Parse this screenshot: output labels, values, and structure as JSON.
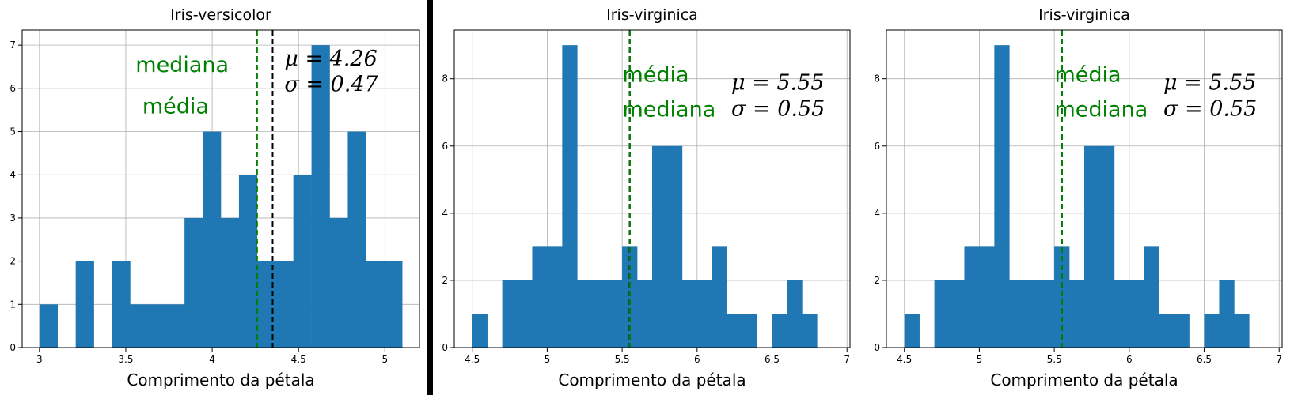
{
  "colors": {
    "bar": "#1f77b4",
    "mean_line": "#008000",
    "median_line": "#000000",
    "annotation": "#008000",
    "grid": "#b0b0b0"
  },
  "chart_data": [
    {
      "type": "bar",
      "title": "Iris-versicolor",
      "xlabel": "Comprimento da pétala",
      "ylabel": "",
      "xlim": [
        2.9,
        5.2
      ],
      "ylim": [
        0,
        7.35
      ],
      "xticks": [
        3.0,
        3.5,
        4.0,
        4.5,
        5.0
      ],
      "yticks": [
        0,
        1,
        2,
        3,
        4,
        5,
        6,
        7
      ],
      "bin_edges": [
        3.0,
        3.105,
        3.21,
        3.315,
        3.42,
        3.525,
        3.63,
        3.735,
        3.84,
        3.945,
        4.05,
        4.155,
        4.26,
        4.365,
        4.47,
        4.575,
        4.68,
        4.785,
        4.89,
        4.995,
        5.1
      ],
      "values": [
        1,
        0,
        2,
        0,
        2,
        1,
        1,
        1,
        3,
        5,
        3,
        4,
        2,
        2,
        4,
        7,
        3,
        5,
        2,
        2
      ],
      "mean": 4.26,
      "median": 4.35,
      "labels": {
        "mean": "média",
        "median": "mediana"
      },
      "stats_text": {
        "mu": "μ = 4.26",
        "sigma": "σ = 0.47"
      },
      "grid": true
    },
    {
      "type": "bar",
      "title": "Iris-virginica",
      "xlabel": "Comprimento da pétala",
      "ylabel": "",
      "xlim": [
        4.38,
        7.02
      ],
      "ylim": [
        0,
        9.45
      ],
      "xticks": [
        4.5,
        5.0,
        5.5,
        6.0,
        6.5,
        7.0
      ],
      "yticks": [
        0,
        2,
        4,
        6,
        8
      ],
      "bin_edges": [
        4.5,
        4.6,
        4.7,
        4.8,
        4.9,
        5.0,
        5.1,
        5.2,
        5.3,
        5.4,
        5.5,
        5.6,
        5.7,
        5.8,
        5.9,
        6.0,
        6.1,
        6.2,
        6.3,
        6.4,
        6.5,
        6.6,
        6.7,
        6.8,
        6.9
      ],
      "values": [
        1,
        0,
        2,
        2,
        3,
        3,
        9,
        2,
        2,
        2,
        3,
        2,
        6,
        6,
        2,
        2,
        3,
        1,
        1,
        0,
        1,
        2,
        1,
        0
      ],
      "mean": 5.552,
      "median": 5.55,
      "labels": {
        "mean": "média",
        "median": "mediana"
      },
      "stats_text": {
        "mu": "μ = 5.55",
        "sigma": "σ = 0.55"
      },
      "grid": true
    },
    {
      "type": "bar",
      "title": "Iris-virginica",
      "xlabel": "Comprimento da pétala",
      "ylabel": "",
      "xlim": [
        4.38,
        7.02
      ],
      "ylim": [
        0,
        9.45
      ],
      "xticks": [
        4.5,
        5.0,
        5.5,
        6.0,
        6.5,
        7.0
      ],
      "yticks": [
        0,
        2,
        4,
        6,
        8
      ],
      "bin_edges": [
        4.5,
        4.6,
        4.7,
        4.8,
        4.9,
        5.0,
        5.1,
        5.2,
        5.3,
        5.4,
        5.5,
        5.6,
        5.7,
        5.8,
        5.9,
        6.0,
        6.1,
        6.2,
        6.3,
        6.4,
        6.5,
        6.6,
        6.7,
        6.8,
        6.9
      ],
      "values": [
        1,
        0,
        2,
        2,
        3,
        3,
        9,
        2,
        2,
        2,
        3,
        2,
        6,
        6,
        2,
        2,
        3,
        1,
        1,
        0,
        1,
        2,
        1,
        0
      ],
      "mean": 5.552,
      "median": 5.55,
      "labels": {
        "mean": "média",
        "median": "mediana"
      },
      "stats_text": {
        "mu": "μ = 5.55",
        "sigma": "σ = 0.55"
      },
      "grid": true
    }
  ]
}
